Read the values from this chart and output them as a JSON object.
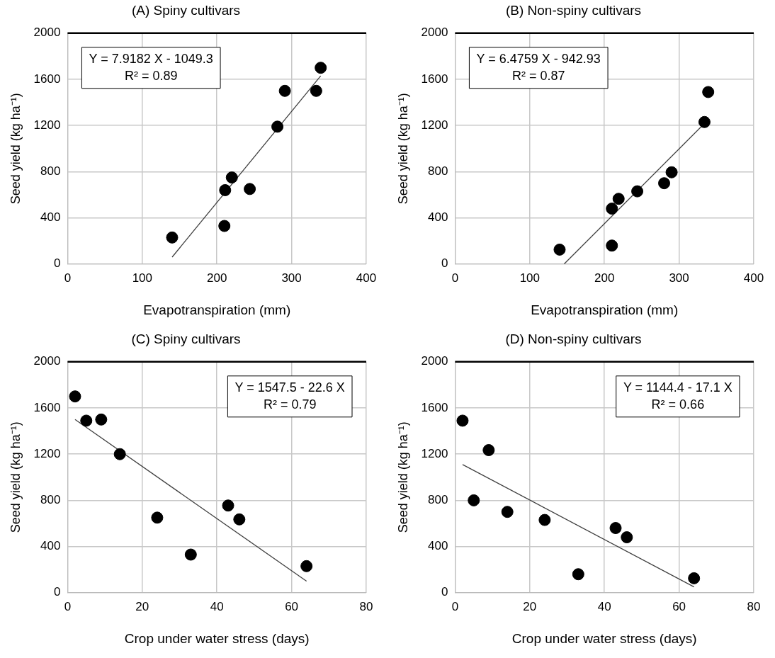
{
  "chart_data": [
    {
      "type": "scatter",
      "title": "(A) Spiny cultivars",
      "xlabel": "Evapotranspiration (mm)",
      "ylabel": "Seed yield (kg ha⁻¹)",
      "x": [
        140,
        210,
        211,
        220,
        244,
        281,
        291,
        333,
        339
      ],
      "series": [
        {
          "color": "#000000",
          "values": [
            230,
            330,
            640,
            750,
            650,
            1190,
            1500,
            1500,
            1700
          ]
        },
        {
          "type": "line",
          "color": "#404040",
          "x": [
            140,
            339
          ],
          "values": [
            60,
            1630
          ],
          "marker": "none"
        }
      ],
      "xlim": [
        0,
        400
      ],
      "xticks": [
        0,
        100,
        200,
        300,
        400
      ],
      "ylim": [
        0,
        2000
      ],
      "yticks": [
        0,
        400,
        800,
        1200,
        1600,
        2000
      ],
      "grid": true,
      "marker": "circle",
      "annotations": [
        "Y = 7.9182 X - 1049.3",
        "R² = 0.89"
      ]
    },
    {
      "type": "scatter",
      "title": "(B) Non-spiny cultivars",
      "xlabel": "Evapotranspiration (mm)",
      "ylabel": "Seed yield (kg ha⁻¹)",
      "x": [
        140,
        210,
        210,
        219,
        244,
        280,
        290,
        334,
        339
      ],
      "series": [
        {
          "color": "#000000",
          "values": [
            125,
            160,
            480,
            565,
            630,
            700,
            795,
            1230,
            1490
          ]
        },
        {
          "type": "line",
          "color": "#404040",
          "x": [
            146,
            339
          ],
          "values": [
            0,
            1250
          ],
          "marker": "none"
        }
      ],
      "xlim": [
        0,
        400
      ],
      "xticks": [
        0,
        100,
        200,
        300,
        400
      ],
      "ylim": [
        0,
        2000
      ],
      "yticks": [
        0,
        400,
        800,
        1200,
        1600,
        2000
      ],
      "grid": true,
      "marker": "circle",
      "annotations": [
        "Y = 6.4759 X - 942.93",
        "R² = 0.87"
      ]
    },
    {
      "type": "scatter",
      "title": "(C) Spiny cultivars",
      "xlabel": "Crop under water stress (days)",
      "ylabel": "Seed yield (kg ha⁻¹)",
      "x": [
        2,
        5,
        9,
        14,
        24,
        33,
        43,
        46,
        64
      ],
      "series": [
        {
          "color": "#000000",
          "values": [
            1700,
            1490,
            1500,
            1200,
            650,
            330,
            755,
            635,
            230
          ]
        },
        {
          "type": "line",
          "color": "#404040",
          "x": [
            2,
            64
          ],
          "values": [
            1500,
            100
          ],
          "marker": "none"
        }
      ],
      "xlim": [
        0,
        80
      ],
      "xticks": [
        0,
        20,
        40,
        60,
        80
      ],
      "ylim": [
        0,
        2000
      ],
      "yticks": [
        0,
        400,
        800,
        1200,
        1600,
        2000
      ],
      "grid": true,
      "marker": "circle",
      "annotations": [
        "Y = 1547.5 - 22.6 X",
        "R² = 0.79"
      ]
    },
    {
      "type": "scatter",
      "title": "(D) Non-spiny cultivars",
      "xlabel": "Crop under water stress (days)",
      "ylabel": "Seed yield (kg ha⁻¹)",
      "x": [
        2,
        5,
        9,
        14,
        24,
        33,
        43,
        46,
        64
      ],
      "series": [
        {
          "color": "#000000",
          "values": [
            1490,
            800,
            1235,
            700,
            630,
            160,
            560,
            480,
            125
          ]
        },
        {
          "type": "line",
          "color": "#404040",
          "x": [
            2,
            64
          ],
          "values": [
            1110,
            50
          ],
          "marker": "none"
        }
      ],
      "xlim": [
        0,
        80
      ],
      "xticks": [
        0,
        20,
        40,
        60,
        80
      ],
      "ylim": [
        0,
        2000
      ],
      "yticks": [
        0,
        400,
        800,
        1200,
        1600,
        2000
      ],
      "grid": true,
      "marker": "circle",
      "annotations": [
        "Y = 1144.4 - 17.1 X",
        "R² = 0.66"
      ]
    }
  ]
}
